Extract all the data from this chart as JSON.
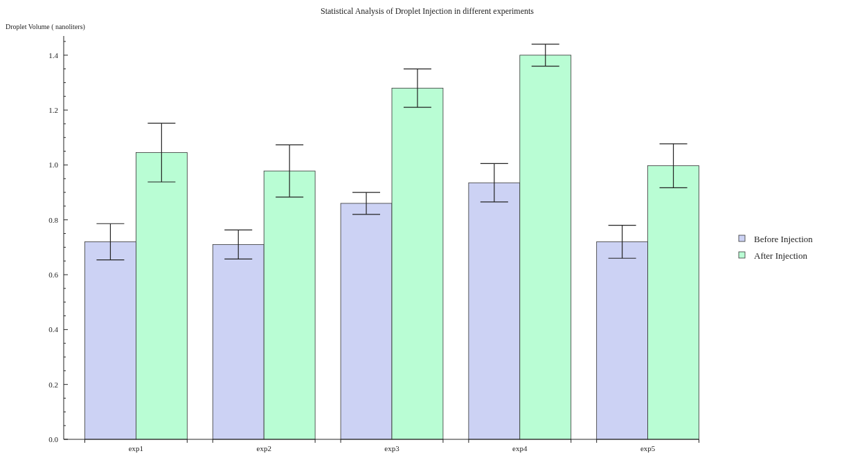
{
  "chart_data": {
    "type": "bar",
    "title": "Statistical Analysis of Droplet Injection in different experiments",
    "ylabel": "Droplet Volume ( nanoliters)",
    "categories": [
      "exp1",
      "exp2",
      "exp3",
      "exp4",
      "exp5"
    ],
    "series": [
      {
        "name": "Before Injection",
        "color": "#ccd2f4",
        "values": [
          0.72,
          0.71,
          0.86,
          0.935,
          0.72
        ],
        "errors": [
          0.066,
          0.053,
          0.04,
          0.07,
          0.06
        ]
      },
      {
        "name": "After Injection",
        "color": "#b9fdd4",
        "values": [
          1.045,
          0.978,
          1.28,
          1.4,
          0.997
        ],
        "errors": [
          0.107,
          0.095,
          0.07,
          0.04,
          0.08
        ]
      }
    ],
    "ylim": [
      0,
      1.47
    ],
    "yticks": [
      {
        "value": 0,
        "label": "0.0"
      },
      {
        "value": 0.05,
        "label": null
      },
      {
        "value": 0.1,
        "label": null
      },
      {
        "value": 0.15,
        "label": null
      },
      0.2,
      {
        "value": 0.25,
        "label": null
      },
      {
        "value": 0.3,
        "label": null
      },
      {
        "value": 0.35,
        "label": null
      },
      0.4,
      {
        "value": 0.45,
        "label": null
      },
      {
        "value": 0.5,
        "label": null
      },
      {
        "value": 0.55,
        "label": null
      },
      0.6,
      {
        "value": 0.65,
        "label": null
      },
      {
        "value": 0.7,
        "label": null
      },
      {
        "value": 0.75,
        "label": null
      },
      0.8,
      {
        "value": 0.85,
        "label": null
      },
      {
        "value": 0.9,
        "label": null
      },
      {
        "value": 0.95,
        "label": null
      },
      {
        "value": 1,
        "label": "1.0"
      },
      {
        "value": 1.05,
        "label": null
      },
      {
        "value": 1.1,
        "label": null
      },
      {
        "value": 1.15,
        "label": null
      },
      1.2,
      {
        "value": 1.25,
        "label": null
      },
      {
        "value": 1.3,
        "label": null
      },
      {
        "value": 1.35,
        "label": null
      },
      1.4,
      {
        "value": 1.45,
        "label": null
      }
    ],
    "legend": "right",
    "grid": false
  }
}
